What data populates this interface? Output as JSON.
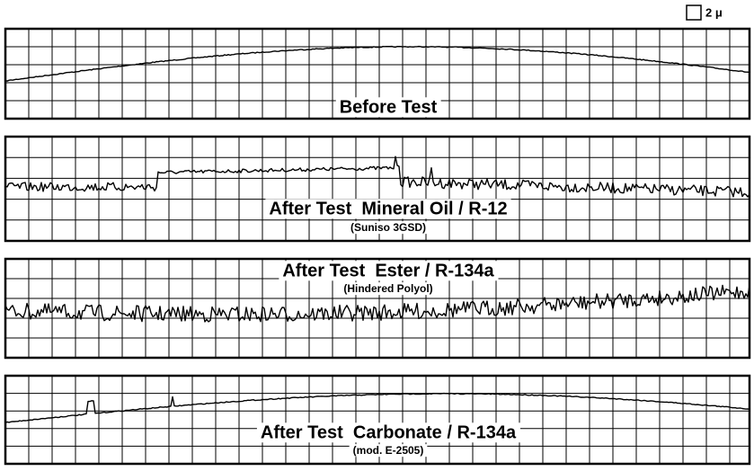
{
  "scale_label": "2 μ",
  "panels": [
    {
      "title": "Before Test"
    },
    {
      "title": "After Test  Mineral Oil / R-12",
      "subtitle": "(Suniso 3GSD)"
    },
    {
      "title": "After Test  Ester / R-134a",
      "subtitle": "(Hindered Polyol)"
    },
    {
      "title": "After Test  Carbonate / R-134a",
      "subtitle": "(mod. E-2505)"
    }
  ]
}
